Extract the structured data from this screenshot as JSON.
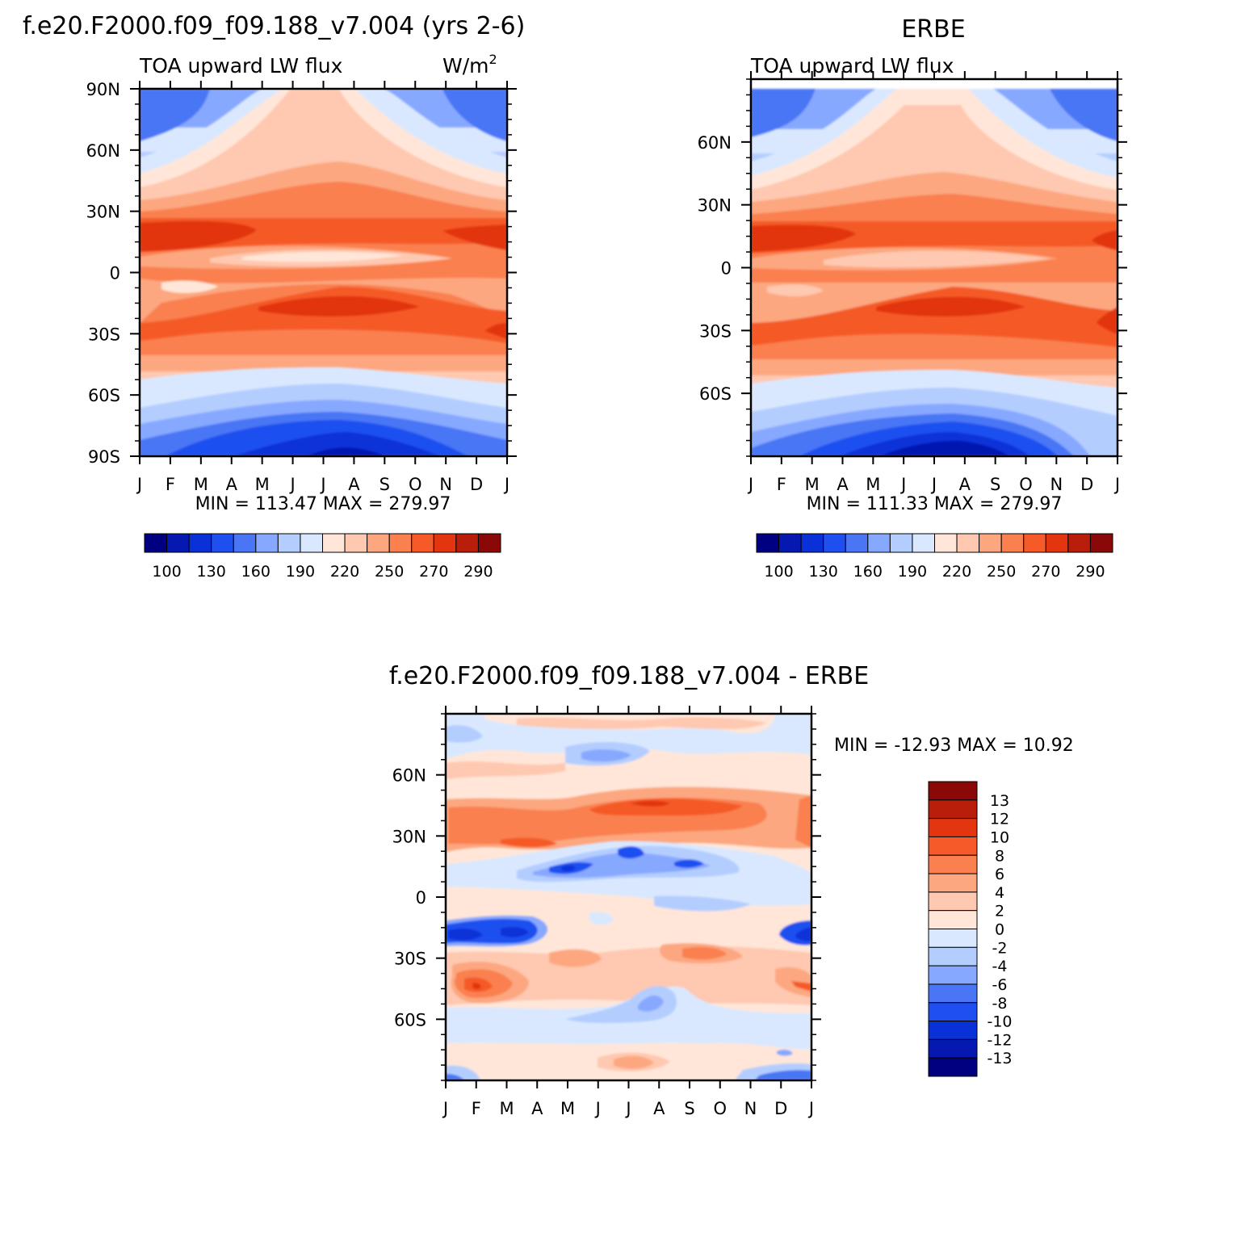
{
  "figure": {
    "units_base": "W/m",
    "units_exp": "2"
  },
  "chart_data": [
    {
      "id": "model",
      "type": "heatmap",
      "title": "f.e20.F2000.f09_f09.188_v7.004 (yrs 2-6)",
      "subtitle": "TOA upward LW flux",
      "units": "W/m2",
      "x_ticks": [
        "J",
        "F",
        "M",
        "A",
        "M",
        "J",
        "J",
        "A",
        "S",
        "O",
        "N",
        "D",
        "J"
      ],
      "y_ticks": [
        "90N",
        "60N",
        "30N",
        "0",
        "30S",
        "60S",
        "90S"
      ],
      "ylim": [
        -90,
        90
      ],
      "stats": "MIN = 113.47 MAX = 279.97",
      "min": 113.47,
      "max": 279.97,
      "colorbar_labels": [
        "100",
        "130",
        "160",
        "190",
        "220",
        "250",
        "270",
        "290"
      ],
      "colorbar_colors": [
        "#000080",
        "#0519b0",
        "#0a30d8",
        "#1f4ff0",
        "#4a76f5",
        "#87a8ff",
        "#b4cdff",
        "#d9e8ff",
        "#ffe6d8",
        "#ffc8b0",
        "#fca780",
        "#fa8050",
        "#f55a28",
        "#e23510",
        "#b81e0a",
        "#8a0808"
      ]
    },
    {
      "id": "obs",
      "type": "heatmap",
      "title": "ERBE",
      "subtitle": "TOA upward LW flux",
      "x_ticks": [
        "J",
        "F",
        "M",
        "A",
        "M",
        "J",
        "J",
        "A",
        "S",
        "O",
        "N",
        "D",
        "J"
      ],
      "y_ticks": [
        "60N",
        "30N",
        "0",
        "30S",
        "60S"
      ],
      "ylim": [
        -90,
        90
      ],
      "stats": "MIN = 111.33 MAX = 279.97",
      "min": 111.33,
      "max": 279.97,
      "colorbar_labels": [
        "100",
        "130",
        "160",
        "190",
        "220",
        "250",
        "270",
        "290"
      ]
    },
    {
      "id": "diff",
      "type": "heatmap",
      "title": "f.e20.F2000.f09_f09.188_v7.004 - ERBE",
      "x_ticks": [
        "J",
        "F",
        "M",
        "A",
        "M",
        "J",
        "J",
        "A",
        "S",
        "O",
        "N",
        "D",
        "J"
      ],
      "y_ticks": [
        "60N",
        "30N",
        "0",
        "30S",
        "60S"
      ],
      "ylim": [
        -90,
        90
      ],
      "stats": "MIN = -12.93 MAX = 10.92",
      "min": -12.93,
      "max": 10.92,
      "colorbar_labels": [
        "13",
        "12",
        "10",
        "8",
        "6",
        "4",
        "2",
        "0",
        "-2",
        "-4",
        "-6",
        "-8",
        "-10",
        "-12",
        "-13"
      ],
      "colorbar_colors": [
        "#8a0808",
        "#b81e0a",
        "#e23510",
        "#f55a28",
        "#fa8050",
        "#fca780",
        "#ffc8b0",
        "#ffe6d8",
        "#d9e8ff",
        "#b4cdff",
        "#87a8ff",
        "#4a76f5",
        "#1f4ff0",
        "#0a30d8",
        "#0519b0",
        "#000080"
      ]
    }
  ]
}
